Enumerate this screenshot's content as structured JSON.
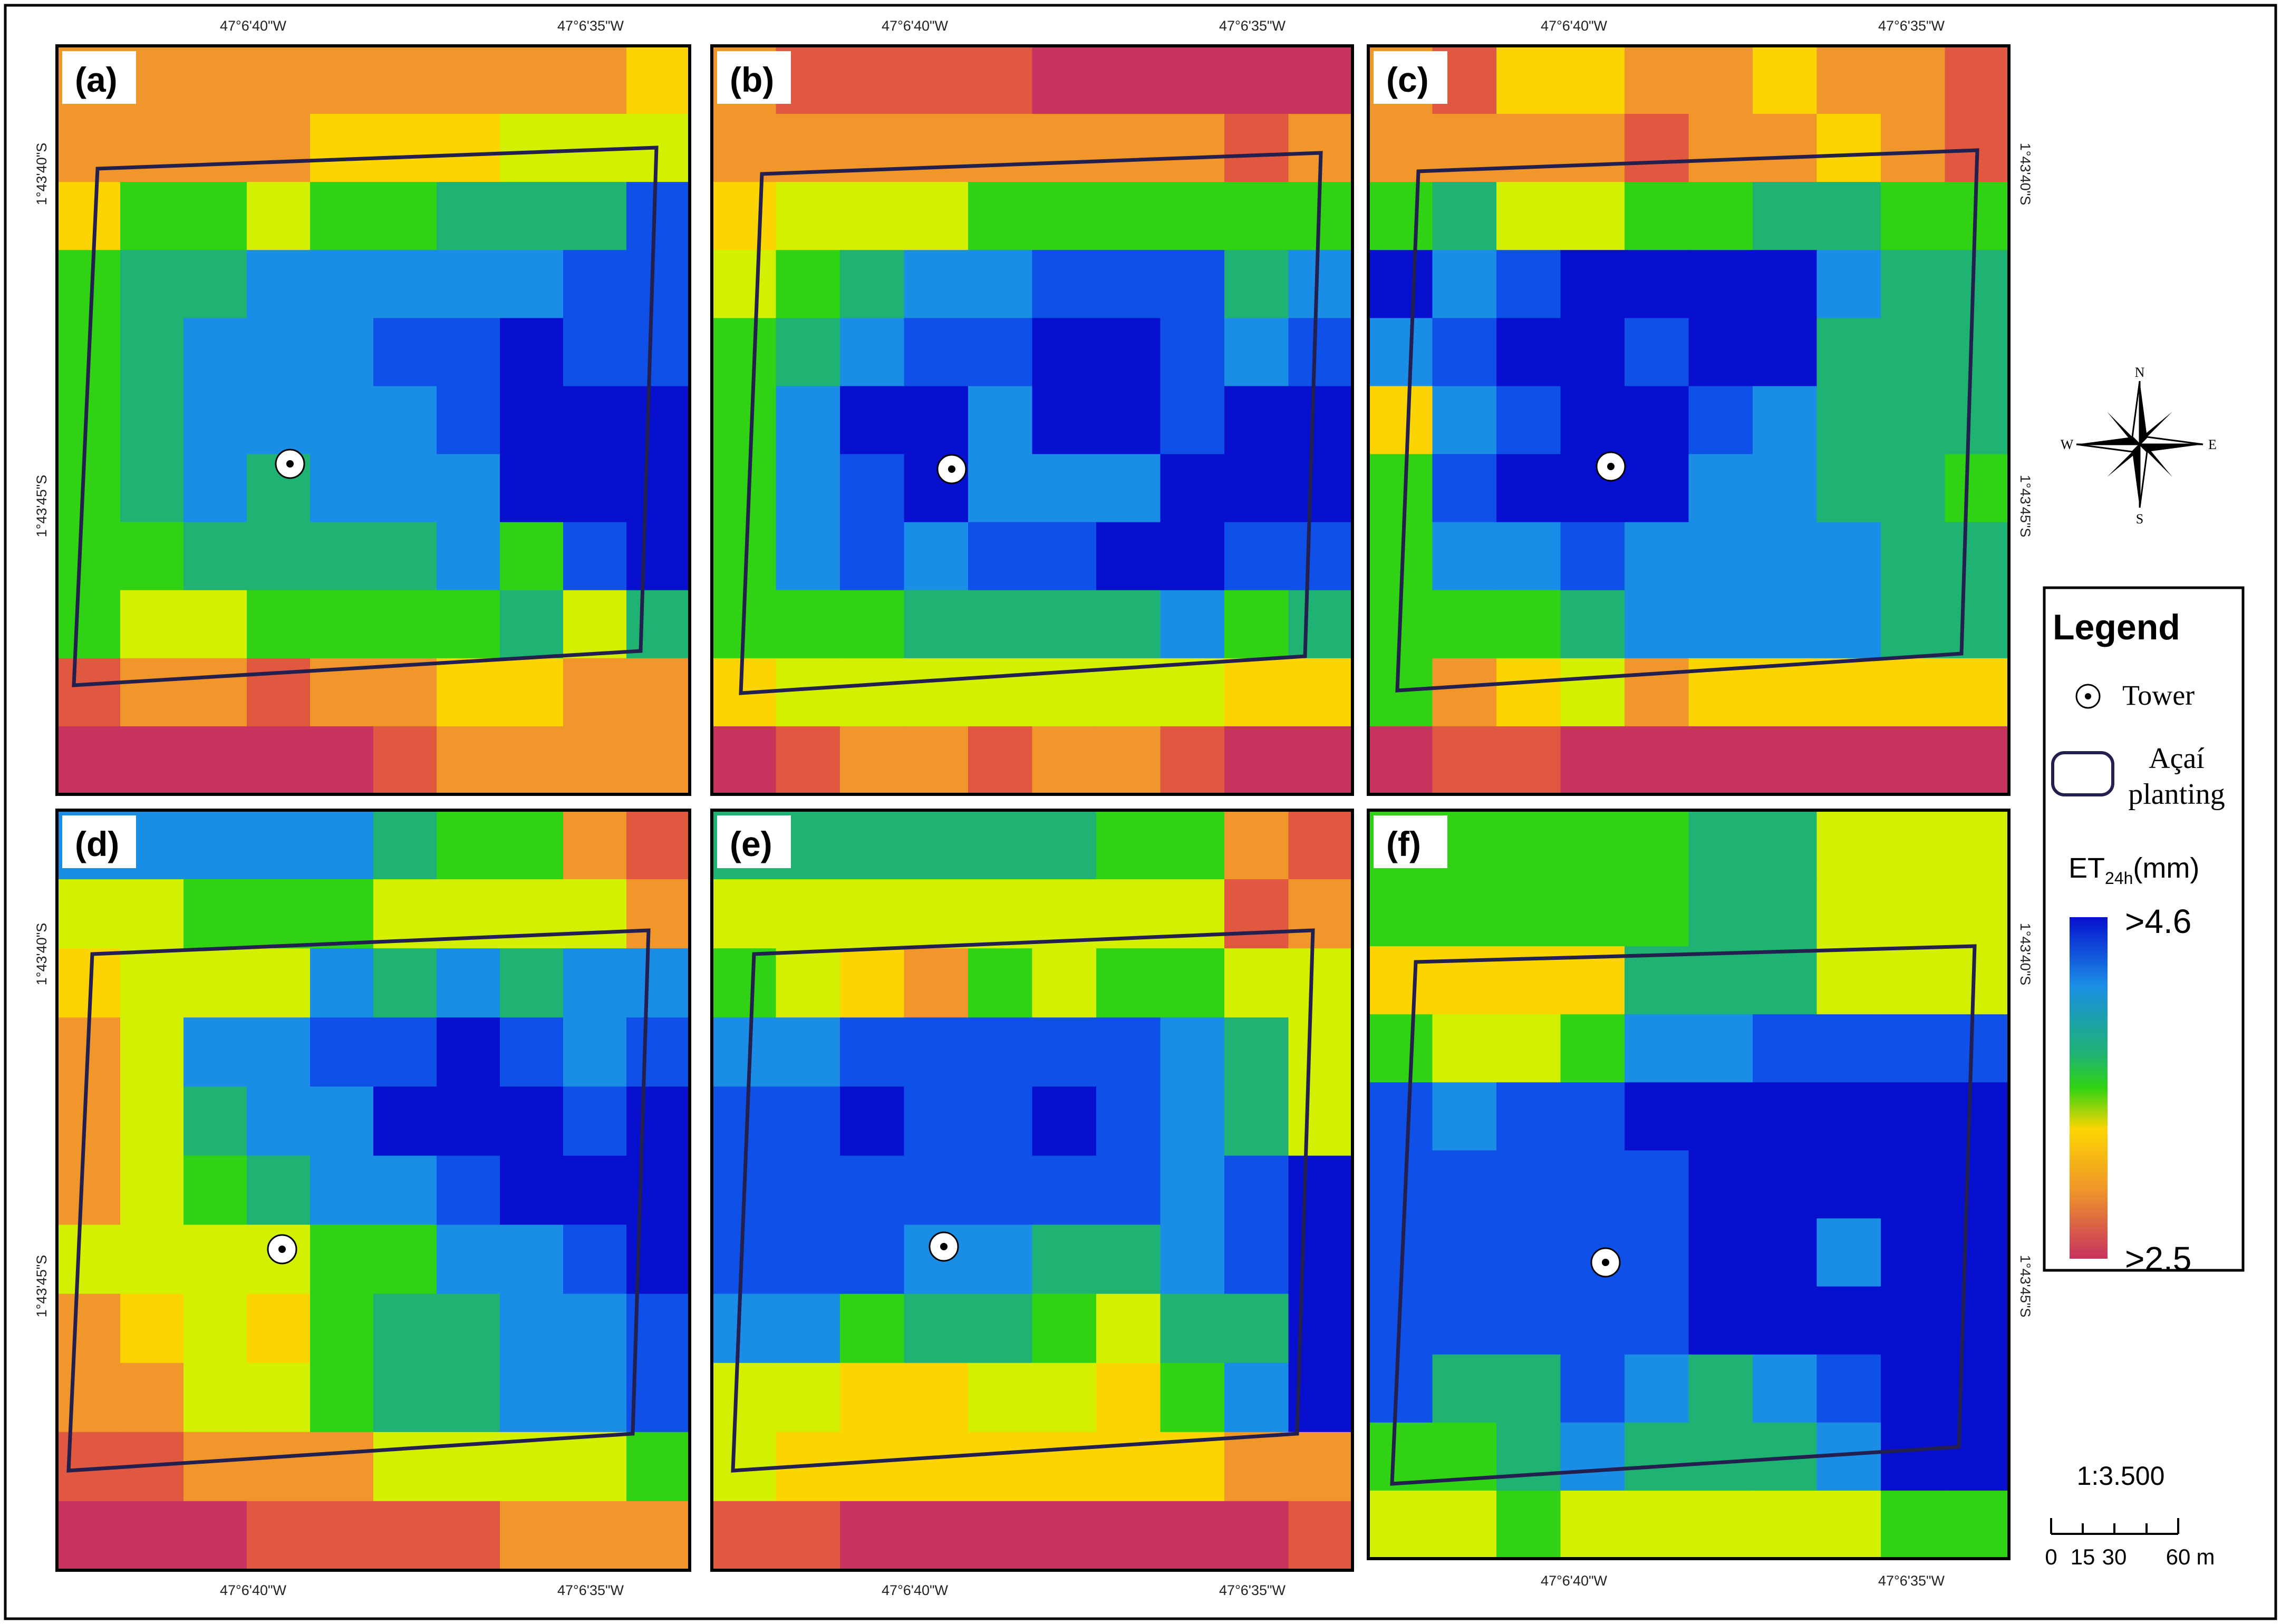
{
  "coordinates": {
    "lon_left": "47°6'40\"W",
    "lon_right": "47°6'35\"W",
    "lat_top": "1°43'40\"S",
    "lat_bottom": "1°43'45\"S"
  },
  "panels": [
    {
      "id": "a",
      "label": "(a)",
      "grid": [
        "OOOOOOOOOY",
        "OOOOYYYLLL",
        "YGGLGGCCCB",
        "GCCSSSSSBB",
        "GCSSSBBNBB",
        "GCSSSSBNNN",
        "GCSCSSSNNN",
        "GGCCCCSGBN",
        "GLLGGGGCLC",
        "ROOROOYYOO",
        "MMMMMROOOO"
      ]
    },
    {
      "id": "b",
      "label": "(b)",
      "grid": [
        "ORRRRMMMMM",
        "OOOOOOOORO",
        "YLLLGGGGGG",
        "LGCSSBBBCS",
        "GCSBBNNBSB",
        "GSNNSNNBNN",
        "GSBNSSSNNN",
        "GSBSBBNNBB",
        "GGGCCCCSGC",
        "YLLLLLLLYY",
        "MROOROORMM"
      ]
    },
    {
      "id": "c",
      "label": "(c)",
      "grid": [
        "ORYYOOYOOR",
        "OOOOROOYOR",
        "GCLLGGCCGG",
        "NSBNNNNSCC",
        "SBNNBNNCCC",
        "YSBNNBSCCC",
        "GBNNNSSCCG",
        "GSSBSSSSCC",
        "GGGCSSSSCC",
        "GOYLOYYYYY",
        "MRRMMMMMMM"
      ]
    },
    {
      "id": "d",
      "label": "(d)",
      "grid": [
        "SSSSSCGGOR",
        "LLGGGLLLLO",
        "YLLLSCSCSS",
        "OLSSBBNBSB",
        "OLCSSNNNBN",
        "OLGCSSBNNN",
        "LLLLGGSSBN",
        "OYLYGCCSSB",
        "OOLLGCCSSB",
        "RROOOLLLLG",
        "MMMRRRROOO"
      ]
    },
    {
      "id": "e",
      "label": "(e)",
      "grid": [
        "CCCCCCGGOR",
        "LLLLLLLLRO",
        "GLYOGLGGLL",
        "SSBBBBBSCL",
        "BBNBBNBSCL",
        "BBBBBBBSBN",
        "BBBSSCCSBN",
        "SSGCCGLCCN",
        "LLYYLLYGSN",
        "LYYYYYYYOO",
        "RRMMMMMMMR"
      ]
    },
    {
      "id": "f",
      "label": "(f)",
      "grid": [
        "GGGGGCCLLL",
        "GGGGGCCLLL",
        "YYYYCCCLLL",
        "GLLGSSBBBB",
        "BSBBNNNNNN",
        "BBBBBNNNNN",
        "BBBBBNNSNN",
        "BBBBBNNNNN",
        "BCCBSCSBNN",
        "GGCSCCCSNN",
        "LLGLLLLLGG"
      ]
    }
  ],
  "legend": {
    "title": "Legend",
    "tower_label": "Tower",
    "planting_label_line1": "Açaí",
    "planting_label_line2": "planting",
    "colorbar_title": "ET",
    "colorbar_subscript": "24h",
    "colorbar_unit": "(mm)",
    "max_label": ">4.6",
    "min_label": ">2.5",
    "max_value": 4.6,
    "min_value": 2.5
  },
  "compass": {
    "n": "N",
    "s": "S",
    "e": "E",
    "w": "W"
  },
  "scale": {
    "ratio": "1:3.500",
    "ticks": [
      "0",
      "15",
      "30",
      "60"
    ],
    "unit": "m"
  },
  "palette": {
    "M": "#c7325e",
    "R": "#e0583f",
    "O": "#f0962a",
    "Y": "#fcd501",
    "L": "#d2f000",
    "G": "#30d314",
    "C": "#1fb373",
    "S": "#1a8ee6",
    "B": "#0f50e8",
    "N": "#0810cf",
    "outline": "#231f4f"
  }
}
